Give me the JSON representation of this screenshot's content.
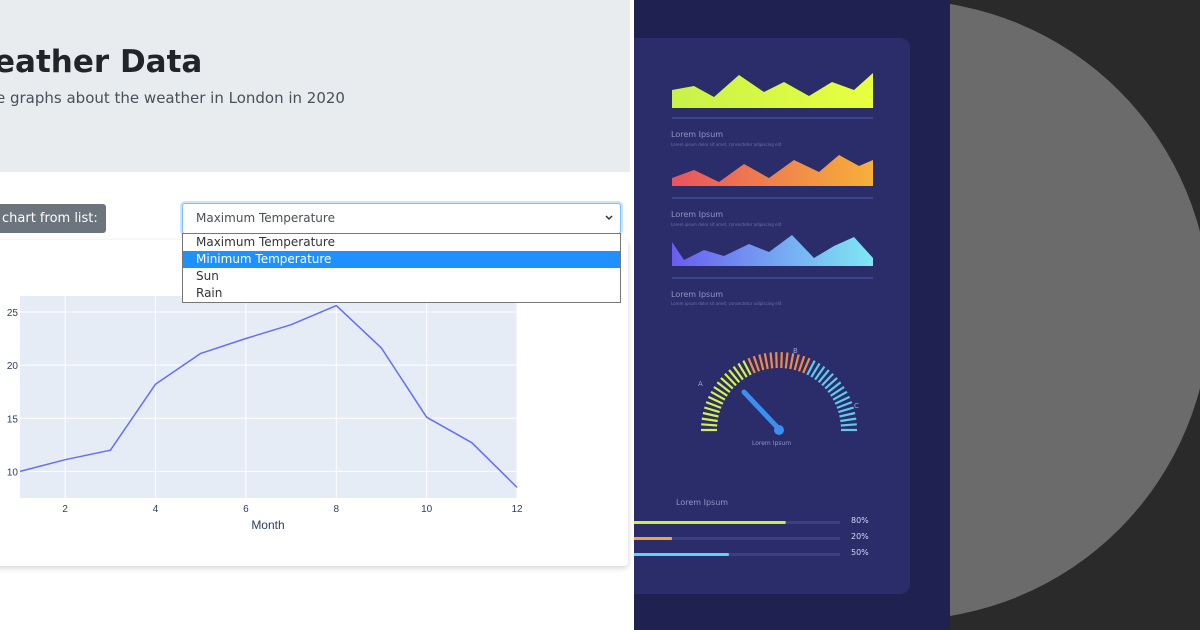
{
  "app": {
    "title": "eather Data",
    "subtitle": "e graphs about the weather in London in 2020",
    "chooser_label": "chart from list:",
    "select": {
      "value": "Maximum Temperature",
      "options": [
        "Maximum Temperature",
        "Minimum Temperature",
        "Sun",
        "Rain"
      ],
      "highlighted_index": 1
    }
  },
  "chart_data": {
    "type": "line",
    "x": [
      1,
      2,
      3,
      4,
      5,
      6,
      7,
      8,
      9,
      10,
      11,
      12
    ],
    "series": [
      {
        "values": [
          10.0,
          11.1,
          12.0,
          18.2,
          21.1,
          22.5,
          23.8,
          25.6,
          21.6,
          15.1,
          12.7,
          8.5
        ]
      }
    ],
    "xlabel": "Month",
    "xticks": [
      2,
      4,
      6,
      8,
      10,
      12
    ],
    "yticks": [
      10,
      15,
      20,
      25
    ],
    "xlim": [
      1,
      12
    ],
    "ylim": [
      7.5,
      26.5
    ],
    "line_color": "#636efa",
    "plot_bg": "#e5ecf6",
    "grid": true
  },
  "dashboard": {
    "lorem": [
      "Lorem Ipsum",
      "Lorem Ipsum",
      "Lorem Ipsum",
      "Lorem Ipsum",
      "Lorem Ipsum"
    ],
    "lorem_sub": "Lorem ipsum dolor sit amet, consectetur adipiscing elit",
    "gauge_letters": [
      "A",
      "B",
      "C"
    ],
    "bars": [
      {
        "label": "80%",
        "value": 0.8,
        "color": "#c9f13f"
      },
      {
        "label": "20%",
        "value": 0.2,
        "color": "#f7a23f"
      },
      {
        "label": "50%",
        "value": 0.5,
        "color": "#5fd2f5"
      }
    ]
  }
}
